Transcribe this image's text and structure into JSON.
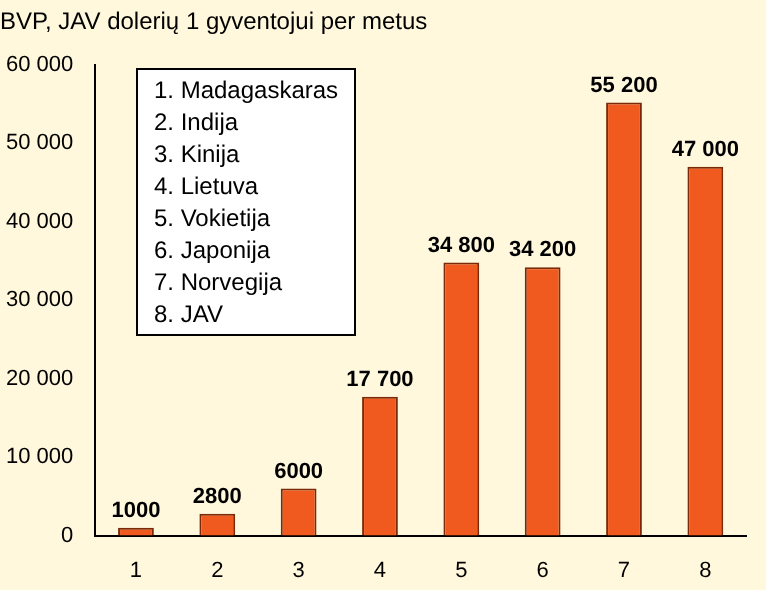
{
  "chart_data": {
    "type": "bar",
    "title": "BVP, JAV dolerių 1 gyventojui per metus",
    "categories": [
      "1",
      "2",
      "3",
      "4",
      "5",
      "6",
      "7",
      "8"
    ],
    "values": [
      1000,
      2800,
      6000,
      17700,
      34800,
      34200,
      55200,
      47000
    ],
    "value_labels": [
      "1000",
      "2800",
      "6000",
      "17 700",
      "34 800",
      "34 200",
      "55 200",
      "47 000"
    ],
    "color": "#f05a1e",
    "ylim": [
      0,
      60000
    ],
    "yticks": [
      0,
      {
        "value": 10000,
        "label": "10 000"
      },
      {
        "value": 20000,
        "label": "20 000"
      },
      {
        "value": 30000,
        "label": "30 000"
      },
      {
        "value": 40000,
        "label": "40 000"
      },
      {
        "value": 50000,
        "label": "50 000"
      },
      {
        "value": 60000,
        "label": "60 000"
      }
    ],
    "grid": false,
    "legend": false,
    "annotations": [
      "1. Madagaskaras",
      "2. Indija",
      "3. Kinija",
      "4. Lietuva",
      "5. Vokietija",
      "6. Japonija",
      "7. Norvegija",
      "8. JAV"
    ]
  }
}
